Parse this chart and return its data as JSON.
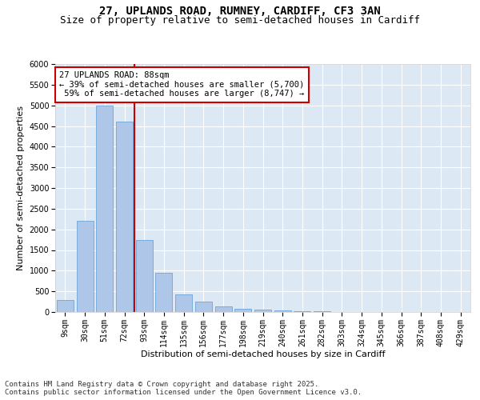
{
  "title1": "27, UPLANDS ROAD, RUMNEY, CARDIFF, CF3 3AN",
  "title2": "Size of property relative to semi-detached houses in Cardiff",
  "xlabel": "Distribution of semi-detached houses by size in Cardiff",
  "ylabel": "Number of semi-detached properties",
  "categories": [
    "9sqm",
    "30sqm",
    "51sqm",
    "72sqm",
    "93sqm",
    "114sqm",
    "135sqm",
    "156sqm",
    "177sqm",
    "198sqm",
    "219sqm",
    "240sqm",
    "261sqm",
    "282sqm",
    "303sqm",
    "324sqm",
    "345sqm",
    "366sqm",
    "387sqm",
    "408sqm",
    "429sqm"
  ],
  "values": [
    300,
    2200,
    5000,
    4600,
    1750,
    950,
    420,
    250,
    130,
    80,
    50,
    30,
    15,
    10,
    5,
    3,
    2,
    1,
    1,
    1,
    1
  ],
  "bar_color": "#aec6e8",
  "bar_edge_color": "#5b9bd5",
  "annotation_text": "27 UPLANDS ROAD: 88sqm\n← 39% of semi-detached houses are smaller (5,700)\n 59% of semi-detached houses are larger (8,747) →",
  "annotation_box_color": "#ffffff",
  "annotation_box_edge_color": "#cc0000",
  "line_color": "#cc0000",
  "ylim": [
    0,
    6000
  ],
  "yticks": [
    0,
    500,
    1000,
    1500,
    2000,
    2500,
    3000,
    3500,
    4000,
    4500,
    5000,
    5500,
    6000
  ],
  "background_color": "#dce9f5",
  "footer_text": "Contains HM Land Registry data © Crown copyright and database right 2025.\nContains public sector information licensed under the Open Government Licence v3.0.",
  "title1_fontsize": 10,
  "title2_fontsize": 9,
  "axis_label_fontsize": 8,
  "tick_fontsize": 7,
  "footer_fontsize": 6.5,
  "annot_fontsize": 7.5
}
